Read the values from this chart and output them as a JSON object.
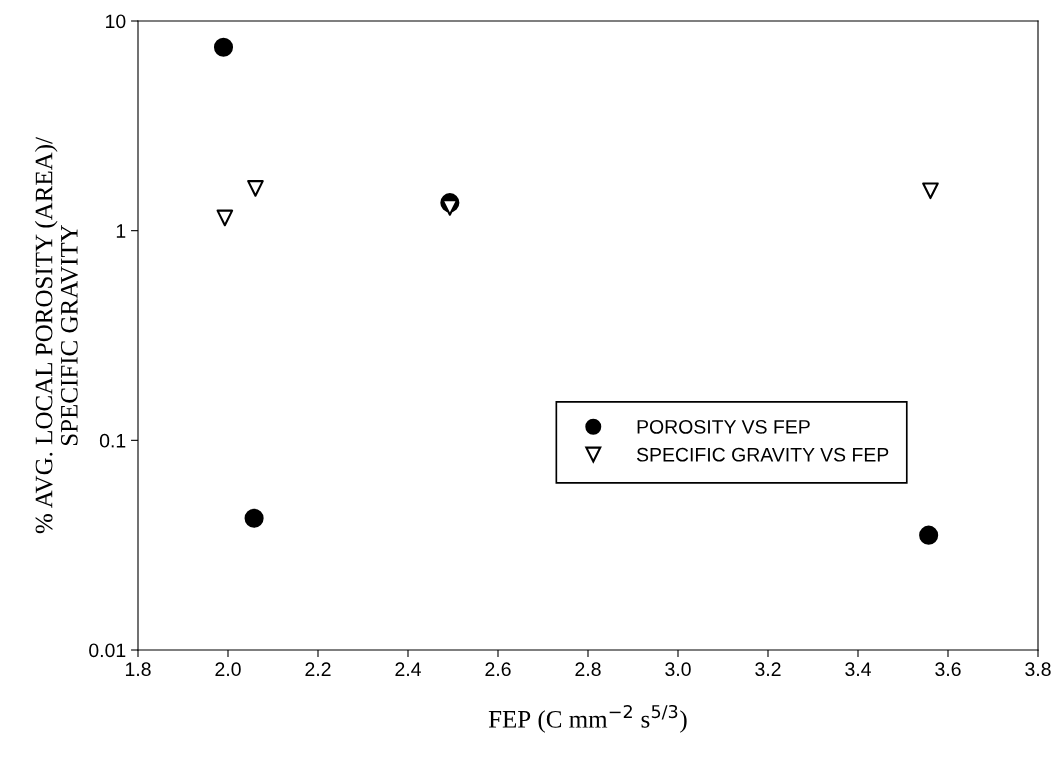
{
  "chart_data": {
    "type": "scatter",
    "xlabel": "FEP (C mm$^{−2}$ s$^{5/3}$)",
    "ylabel": "% AVG. LOCAL POROSITY (AREA)/\nSPECIFIC GRAVITY",
    "series": [
      {
        "name": "POROSITY VS FEP",
        "color": "#000000",
        "marker": "circle",
        "x": [
          1.99,
          2.058,
          2.493,
          3.557
        ],
        "values": [
          7.5,
          0.0425,
          1.36,
          0.0353
        ]
      },
      {
        "name": "SPECIFIC GRAVITY VS FEP",
        "color": "#000000",
        "marker": "triangle",
        "x": [
          1.993,
          2.061,
          2.493,
          3.561
        ],
        "values": [
          1.15,
          1.59,
          1.29,
          1.55
        ]
      }
    ],
    "log": "y",
    "xlim": [
      1.8,
      3.8
    ],
    "xticks": [
      {
        "value": 1.8,
        "label": "1.8"
      },
      {
        "value": 2.0,
        "label": "2.0"
      },
      {
        "value": 2.2,
        "label": "2.2"
      },
      {
        "value": 2.4,
        "label": "2.4"
      },
      {
        "value": 2.6,
        "label": "2.6"
      },
      {
        "value": 2.8,
        "label": "2.8"
      },
      {
        "value": 3.0,
        "label": "3.0"
      },
      {
        "value": 3.2,
        "label": "3.2"
      },
      {
        "value": 3.4,
        "label": "3.4"
      },
      {
        "value": 3.6,
        "label": "3.6"
      },
      {
        "value": 3.8,
        "label": "3.8"
      }
    ],
    "ylim": [
      0.01,
      10
    ],
    "yticks": [
      0.01,
      0.1,
      1,
      10
    ],
    "grid": false,
    "legend": "right"
  }
}
